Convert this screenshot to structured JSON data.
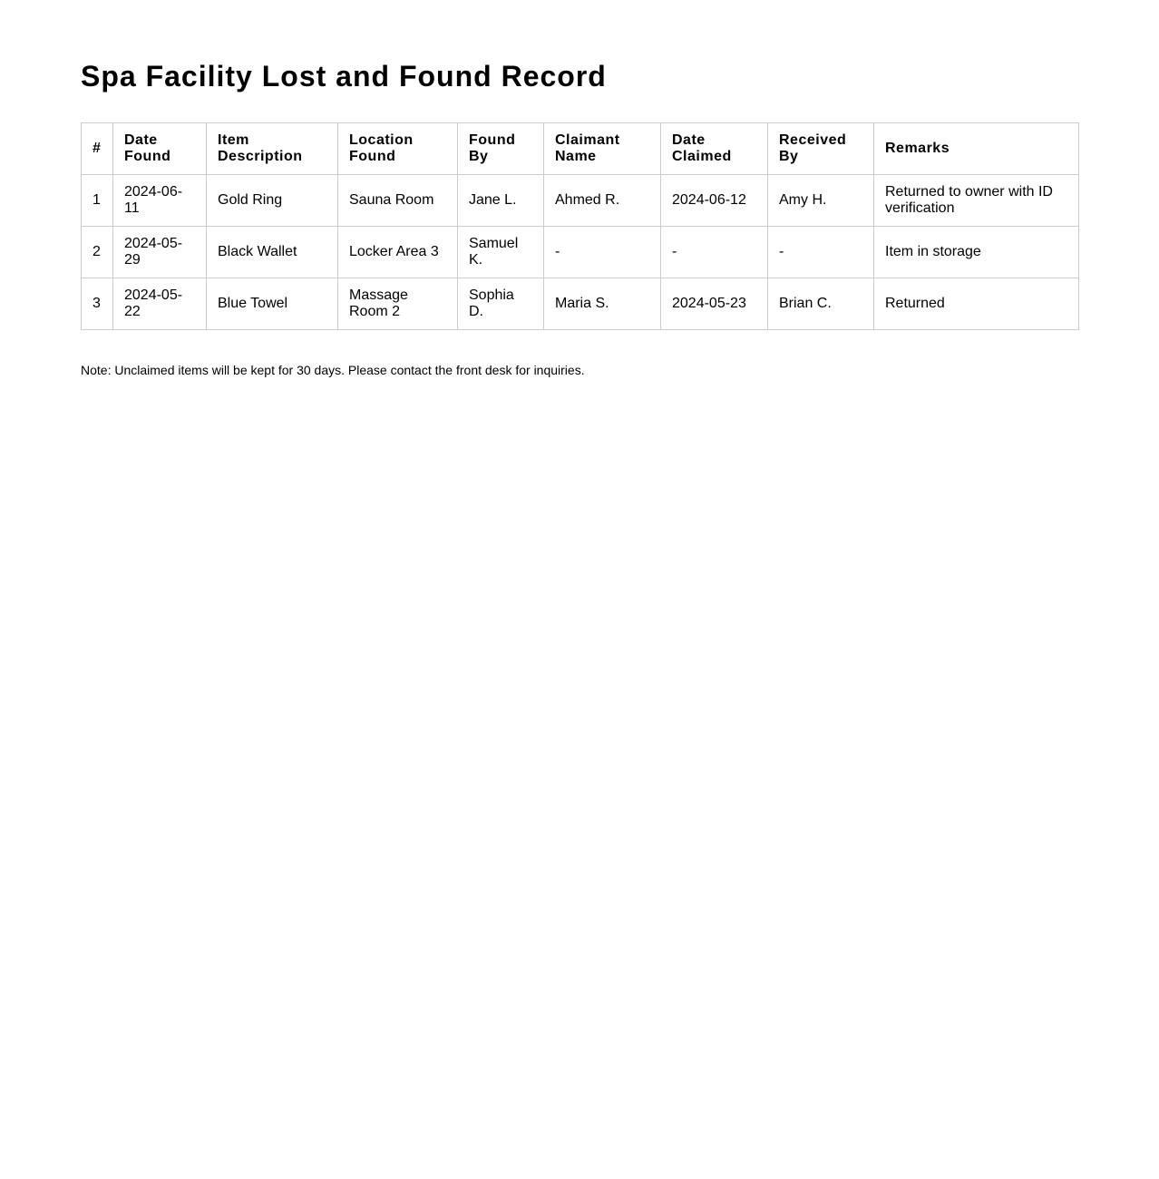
{
  "title": "Spa Facility Lost and Found Record",
  "columns": [
    "#",
    "Date Found",
    "Item Description",
    "Location Found",
    "Found By",
    "Claimant Name",
    "Date Claimed",
    "Received By",
    "Remarks"
  ],
  "rows": [
    [
      "1",
      "2024-06-11",
      "Gold Ring",
      "Sauna Room",
      "Jane L.",
      "Ahmed R.",
      "2024-06-12",
      "Amy H.",
      "Returned to owner with ID verification"
    ],
    [
      "2",
      "2024-05-29",
      "Black Wallet",
      "Locker Area 3",
      "Samuel K.",
      "-",
      "-",
      "-",
      "Item in storage"
    ],
    [
      "3",
      "2024-05-22",
      "Blue Towel",
      "Massage Room 2",
      "Sophia D.",
      "Maria S.",
      "2024-05-23",
      "Brian C.",
      "Returned"
    ]
  ],
  "note": "Note: Unclaimed items will be kept for 30 days. Please contact the front desk for inquiries."
}
